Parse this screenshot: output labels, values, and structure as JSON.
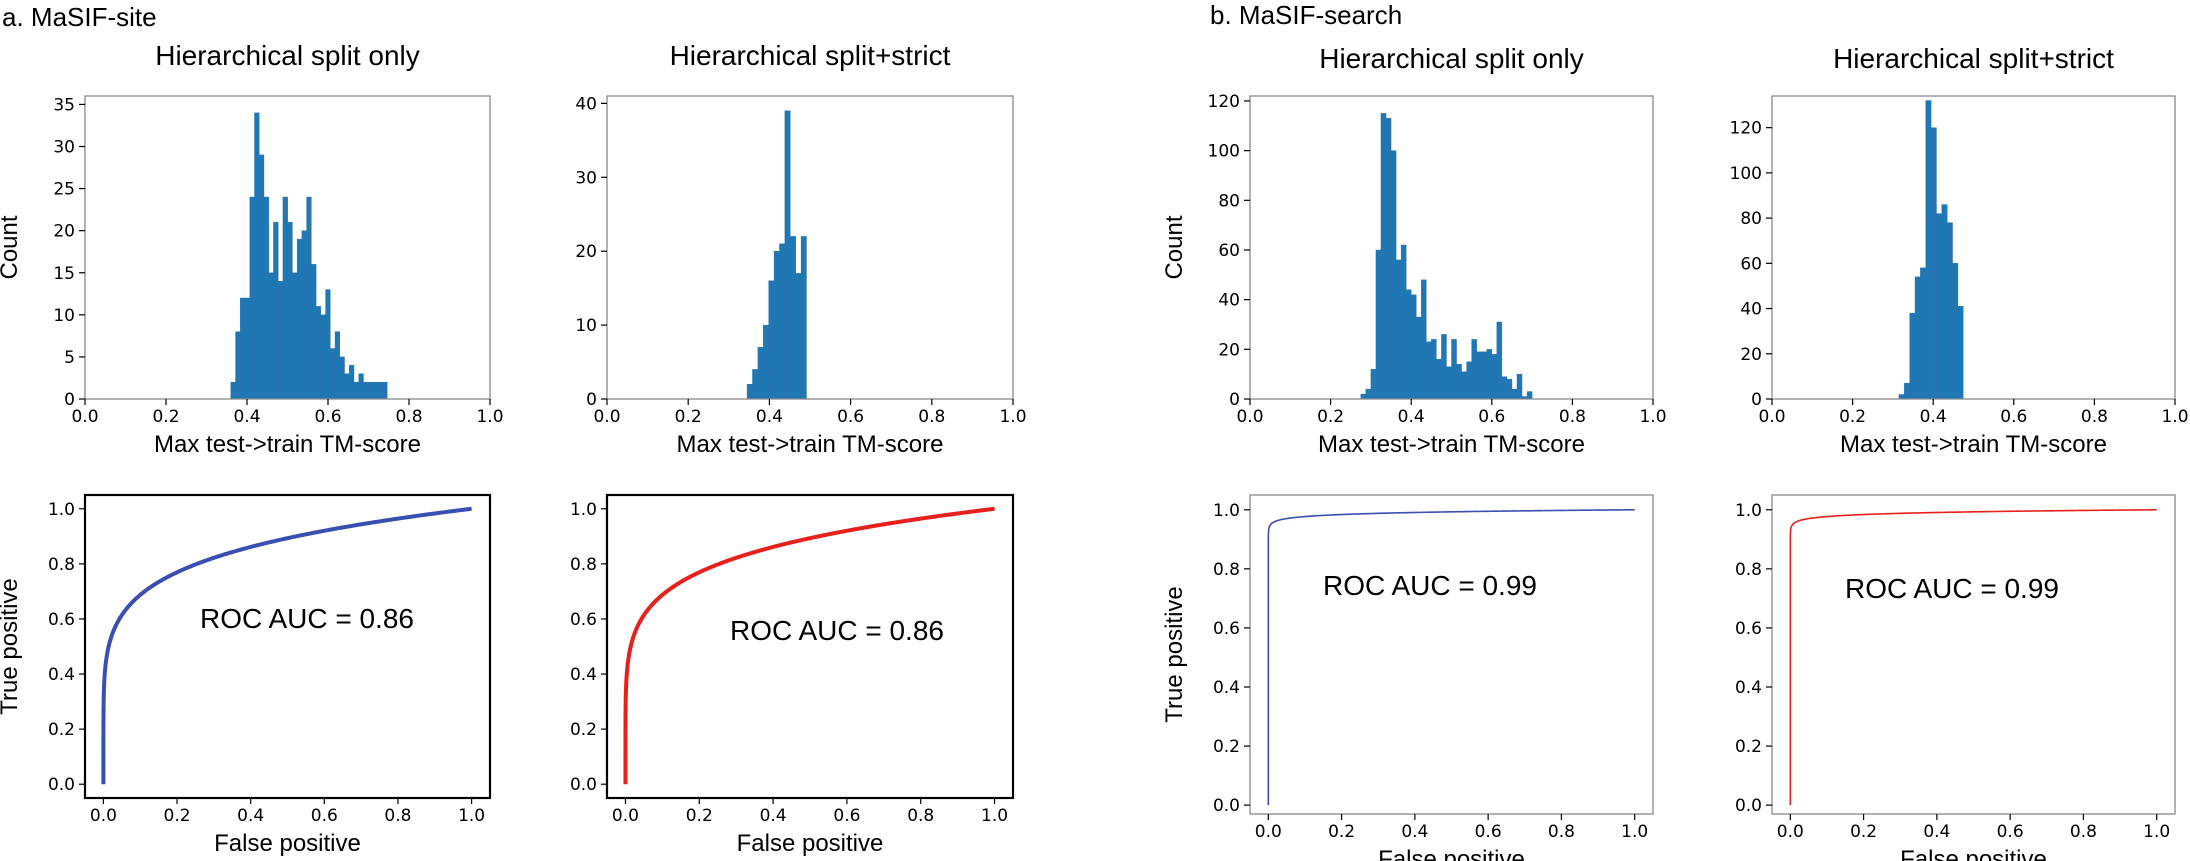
{
  "panels": [
    {
      "label": "a. MaSIF-site"
    },
    {
      "label": "b. MaSIF-search"
    }
  ],
  "colors": {
    "bar": "#1f77b4",
    "roc_blue": "#3a4fb2",
    "roc_red": "#e8201c",
    "axis": "#000000",
    "frame_light": "#8a8a8a"
  },
  "chart_data": [
    {
      "type": "bar",
      "panel": "a. MaSIF-site",
      "title": "Hierarchical split only",
      "xlabel": "Max test->train TM-score",
      "ylabel": "Count",
      "xlim": [
        0.0,
        1.0
      ],
      "ylim": [
        0,
        36
      ],
      "xticks": [
        0.0,
        0.2,
        0.4,
        0.6,
        0.8,
        1.0
      ],
      "xtick_labels": [
        "0.0",
        "0.2",
        "0.4",
        "0.6",
        "0.8",
        "1.0"
      ],
      "yticks": [
        0,
        5,
        10,
        15,
        20,
        25,
        30,
        35
      ],
      "ytick_labels": [
        "0",
        "5",
        "10",
        "15",
        "20",
        "25",
        "30",
        "35"
      ],
      "bin_start": 0.36,
      "bin_width": 0.0117,
      "values": [
        2,
        8,
        12,
        12,
        24,
        34,
        29,
        24,
        15,
        21,
        14,
        24,
        21,
        15,
        19,
        20,
        24,
        16,
        11,
        10,
        13,
        6,
        8,
        5,
        3,
        4,
        2,
        3,
        2,
        2,
        2,
        2,
        2
      ]
    },
    {
      "type": "bar",
      "panel": "a. MaSIF-site",
      "title": "Hierarchical split+strict",
      "xlabel": "Max test->train TM-score",
      "ylabel": "",
      "xlim": [
        0.0,
        1.0
      ],
      "ylim": [
        0,
        41
      ],
      "xticks": [
        0.0,
        0.2,
        0.4,
        0.6,
        0.8,
        1.0
      ],
      "xtick_labels": [
        "0.0",
        "0.2",
        "0.4",
        "0.6",
        "0.8",
        "1.0"
      ],
      "yticks": [
        0,
        10,
        20,
        30,
        40
      ],
      "ytick_labels": [
        "0",
        "10",
        "20",
        "30",
        "40"
      ],
      "bin_start": 0.345,
      "bin_width": 0.0133,
      "values": [
        2,
        4,
        7,
        10,
        16,
        20,
        21,
        39,
        22,
        17,
        22
      ]
    },
    {
      "type": "line",
      "panel": "a. MaSIF-site",
      "title": "",
      "xlabel": "False positive",
      "ylabel": "True positive",
      "xlim": [
        -0.05,
        1.05
      ],
      "ylim": [
        -0.05,
        1.05
      ],
      "xticks": [
        0.0,
        0.2,
        0.4,
        0.6,
        0.8,
        1.0
      ],
      "xtick_labels": [
        "0.0",
        "0.2",
        "0.4",
        "0.6",
        "0.8",
        "1.0"
      ],
      "yticks": [
        0.0,
        0.2,
        0.4,
        0.6,
        0.8,
        1.0
      ],
      "ytick_labels": [
        "0.0",
        "0.2",
        "0.4",
        "0.6",
        "0.8",
        "1.0"
      ],
      "color": "#3a4fb2",
      "curve_k": 6.14,
      "annotation": "ROC AUC = 0.86"
    },
    {
      "type": "line",
      "panel": "a. MaSIF-site",
      "title": "",
      "xlabel": "False positive",
      "ylabel": "",
      "xlim": [
        -0.05,
        1.05
      ],
      "ylim": [
        -0.05,
        1.05
      ],
      "xticks": [
        0.0,
        0.2,
        0.4,
        0.6,
        0.8,
        1.0
      ],
      "xtick_labels": [
        "0.0",
        "0.2",
        "0.4",
        "0.6",
        "0.8",
        "1.0"
      ],
      "yticks": [
        0.0,
        0.2,
        0.4,
        0.6,
        0.8,
        1.0
      ],
      "ytick_labels": [
        "0.0",
        "0.2",
        "0.4",
        "0.6",
        "0.8",
        "1.0"
      ],
      "color": "#e8201c",
      "curve_k": 6.14,
      "annotation": "ROC AUC = 0.86"
    },
    {
      "type": "bar",
      "panel": "b. MaSIF-search",
      "title": "Hierarchical split only",
      "xlabel": "Max test->train TM-score",
      "ylabel": "Count",
      "xlim": [
        0.0,
        1.0
      ],
      "ylim": [
        0,
        122
      ],
      "xticks": [
        0.0,
        0.2,
        0.4,
        0.6,
        0.8,
        1.0
      ],
      "xtick_labels": [
        "0.0",
        "0.2",
        "0.4",
        "0.6",
        "0.8",
        "1.0"
      ],
      "yticks": [
        0,
        20,
        40,
        60,
        80,
        100,
        120
      ],
      "ytick_labels": [
        "0",
        "20",
        "40",
        "60",
        "80",
        "100",
        "120"
      ],
      "bin_start": 0.275,
      "bin_width": 0.0125,
      "values": [
        2,
        4,
        12,
        60,
        115,
        113,
        100,
        56,
        62,
        44,
        42,
        33,
        48,
        23,
        24,
        16,
        26,
        13,
        24,
        14,
        11,
        15,
        24,
        19,
        19,
        20,
        18,
        31,
        9,
        8,
        4,
        10,
        1,
        3
      ]
    },
    {
      "type": "bar",
      "panel": "b. MaSIF-search",
      "title": "Hierarchical split+strict",
      "xlabel": "Max test->train TM-score",
      "ylabel": "",
      "xlim": [
        0.0,
        1.0
      ],
      "ylim": [
        0,
        134
      ],
      "xticks": [
        0.0,
        0.2,
        0.4,
        0.6,
        0.8,
        1.0
      ],
      "xtick_labels": [
        "0.0",
        "0.2",
        "0.4",
        "0.6",
        "0.8",
        "1.0"
      ],
      "yticks": [
        0,
        20,
        40,
        60,
        80,
        100,
        120
      ],
      "ytick_labels": [
        "0",
        "20",
        "40",
        "60",
        "80",
        "100",
        "120"
      ],
      "bin_start": 0.315,
      "bin_width": 0.0133,
      "values": [
        2,
        7,
        38,
        54,
        58,
        132,
        120,
        82,
        86,
        78,
        60,
        41
      ]
    },
    {
      "type": "line",
      "panel": "b. MaSIF-search",
      "title": "",
      "xlabel": "False positive",
      "ylabel": "True positive",
      "xlim": [
        -0.05,
        1.05
      ],
      "ylim": [
        -0.03,
        1.05
      ],
      "xticks": [
        0.0,
        0.2,
        0.4,
        0.6,
        0.8,
        1.0
      ],
      "xtick_labels": [
        "0.0",
        "0.2",
        "0.4",
        "0.6",
        "0.8",
        "1.0"
      ],
      "yticks": [
        0.0,
        0.2,
        0.4,
        0.6,
        0.8,
        1.0
      ],
      "ytick_labels": [
        "0.0",
        "0.2",
        "0.4",
        "0.6",
        "0.8",
        "1.0"
      ],
      "color": "#3a4fb2",
      "curve_k": 99,
      "annotation": "ROC AUC = 0.99"
    },
    {
      "type": "line",
      "panel": "b. MaSIF-search",
      "title": "",
      "xlabel": "False positive",
      "ylabel": "",
      "xlim": [
        -0.05,
        1.05
      ],
      "ylim": [
        -0.03,
        1.05
      ],
      "xticks": [
        0.0,
        0.2,
        0.4,
        0.6,
        0.8,
        1.0
      ],
      "xtick_labels": [
        "0.0",
        "0.2",
        "0.4",
        "0.6",
        "0.8",
        "1.0"
      ],
      "yticks": [
        0.0,
        0.2,
        0.4,
        0.6,
        0.8,
        1.0
      ],
      "ytick_labels": [
        "0.0",
        "0.2",
        "0.4",
        "0.6",
        "0.8",
        "1.0"
      ],
      "color": "#e8201c",
      "curve_k": 99,
      "annotation": "ROC AUC = 0.99"
    }
  ]
}
